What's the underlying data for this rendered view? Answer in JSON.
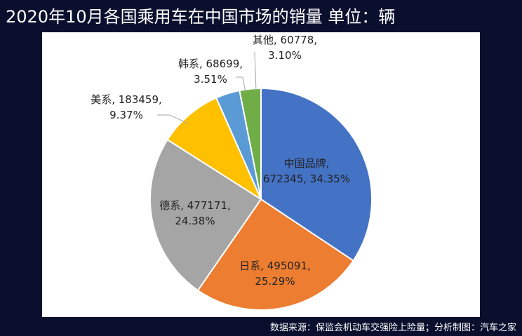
{
  "title": "2020年10月各国乘用车在中国市场的销量  单位：辆",
  "footer": "数据来源：保监会机动车交强险上险量；分析制图：汽车之家",
  "chart_data": {
    "type": "pie",
    "title": "2020年10月各国乘用车在中国市场的销量  单位：辆",
    "slices": [
      {
        "name": "中国品牌",
        "value": 672345,
        "percent": "34.35%",
        "color": "#4472c4",
        "label_lines": [
          "中国品牌,",
          "672345, 34.35%"
        ]
      },
      {
        "name": "日系",
        "value": 495091,
        "percent": "25.29%",
        "color": "#ed7d31",
        "label_lines": [
          "日系, 495091,",
          "25.29%"
        ]
      },
      {
        "name": "德系",
        "value": 477171,
        "percent": "24.38%",
        "color": "#a5a5a5",
        "label_lines": [
          "德系, 477171,",
          "24.38%"
        ]
      },
      {
        "name": "美系",
        "value": 183459,
        "percent": "9.37%",
        "color": "#ffc000",
        "label_lines": [
          "美系, 183459,",
          "9.37%"
        ]
      },
      {
        "name": "韩系",
        "value": 68699,
        "percent": "3.51%",
        "color": "#5b9bd5",
        "label_lines": [
          "韩系, 68699,",
          "3.51%"
        ]
      },
      {
        "name": "其他",
        "value": 60778,
        "percent": "3.10%",
        "color": "#70ad47",
        "label_lines": [
          "其他, 60778,",
          "3.10%"
        ]
      }
    ]
  }
}
